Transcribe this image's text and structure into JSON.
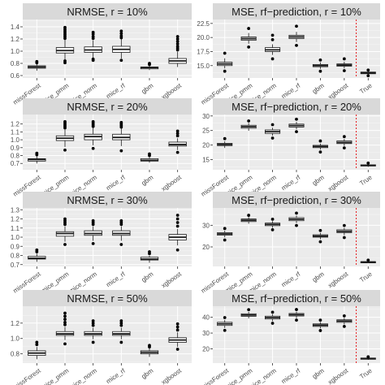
{
  "colors": {
    "panel_bg": "#ebebeb",
    "grid_major": "#ffffff",
    "strip_bg": "#d9d9d9",
    "box_fill": "#ffffff",
    "box_stroke": "#1a1a1a",
    "cutoff_line": "#e41a1c"
  },
  "chart_data": [
    {
      "type": "boxplot",
      "title": "NRMSE, r = 10%",
      "categories": [
        "missForest",
        "mice_pmm",
        "mice_norm",
        "mice_rf",
        "gbm",
        "xgboost"
      ],
      "ylim": [
        0.56,
        1.52
      ],
      "yticks": [
        0.6,
        0.8,
        1.0,
        1.2,
        1.4
      ],
      "ytick_labels": [
        "0.6",
        "0.8",
        "1.0",
        "1.2",
        "1.4"
      ],
      "grid": true,
      "boxes": [
        {
          "q1": 0.72,
          "median": 0.74,
          "q3": 0.76,
          "whisker_low": 0.68,
          "whisker_high": 0.8,
          "outliers": [
            0.81,
            0.83
          ]
        },
        {
          "q1": 0.97,
          "median": 1.01,
          "q3": 1.06,
          "whisker_low": 0.86,
          "whisker_high": 1.19,
          "outliers": [
            0.81,
            0.84,
            1.21,
            1.24,
            1.27,
            1.3,
            1.33,
            1.36,
            1.39
          ]
        },
        {
          "q1": 0.98,
          "median": 1.02,
          "q3": 1.07,
          "whisker_low": 0.89,
          "whisker_high": 1.18,
          "outliers": [
            0.85,
            0.87,
            1.21,
            1.24,
            1.28,
            1.31
          ]
        },
        {
          "q1": 0.98,
          "median": 1.03,
          "q3": 1.08,
          "whisker_low": 0.88,
          "whisker_high": 1.2,
          "outliers": [
            0.85,
            1.22,
            1.25,
            1.29,
            1.33
          ]
        },
        {
          "q1": 0.71,
          "median": 0.73,
          "q3": 0.74,
          "whisker_low": 0.69,
          "whisker_high": 0.77,
          "outliers": [
            0.78,
            0.8
          ]
        },
        {
          "q1": 0.8,
          "median": 0.84,
          "q3": 0.88,
          "whisker_low": 0.74,
          "whisker_high": 0.99,
          "outliers": [
            1.02,
            1.05,
            1.08,
            1.12,
            1.16,
            1.2,
            1.24
          ]
        }
      ]
    },
    {
      "type": "boxplot",
      "title": "MSE, rf−prediction, r = 10%",
      "categories": [
        "missForest",
        "mice_pmm",
        "mice_norm",
        "mice_rf",
        "gbm",
        "xgboost",
        "True"
      ],
      "ylim": [
        12.8,
        23.2
      ],
      "yticks": [
        15.0,
        17.5,
        20.0,
        22.5
      ],
      "ytick_labels": [
        "15.0",
        "17.5",
        "20.0",
        "22.5"
      ],
      "grid": true,
      "cutoff_after_category": "xgboost",
      "boxes": [
        {
          "q1": 15.0,
          "median": 15.3,
          "q3": 15.6,
          "whisker_low": 14.5,
          "whisker_high": 16.3,
          "outliers": [
            14.0,
            17.2
          ]
        },
        {
          "q1": 19.5,
          "median": 19.8,
          "q3": 20.1,
          "whisker_low": 18.9,
          "whisker_high": 20.8,
          "outliers": [
            18.3,
            21.6
          ]
        },
        {
          "q1": 17.5,
          "median": 17.8,
          "q3": 18.2,
          "whisker_low": 16.9,
          "whisker_high": 18.8,
          "outliers": [
            16.2,
            19.6,
            20.4
          ]
        },
        {
          "q1": 19.8,
          "median": 20.1,
          "q3": 20.4,
          "whisker_low": 19.2,
          "whisker_high": 21.0,
          "outliers": [
            18.6,
            22.0
          ]
        },
        {
          "q1": 14.8,
          "median": 15.0,
          "q3": 15.2,
          "whisker_low": 14.4,
          "whisker_high": 15.6,
          "outliers": [
            14.0,
            16.0
          ]
        },
        {
          "q1": 14.9,
          "median": 15.1,
          "q3": 15.3,
          "whisker_low": 14.5,
          "whisker_high": 15.7,
          "outliers": [
            14.1,
            16.2
          ]
        },
        {
          "q1": 13.55,
          "median": 13.7,
          "q3": 13.85,
          "whisker_low": 13.4,
          "whisker_high": 14.0,
          "outliers": [
            13.2,
            14.2
          ]
        }
      ]
    },
    {
      "type": "boxplot",
      "title": "NRMSE, r = 20%",
      "categories": [
        "missForest",
        "mice_pmm",
        "mice_norm",
        "mice_rf",
        "gbm",
        "xgboost"
      ],
      "ylim": [
        0.62,
        1.32
      ],
      "yticks": [
        0.7,
        0.8,
        0.9,
        1.0,
        1.1,
        1.2
      ],
      "ytick_labels": [
        "0.7",
        "0.8",
        "0.9",
        "1.0",
        "1.1",
        "1.2"
      ],
      "grid": true,
      "boxes": [
        {
          "q1": 0.73,
          "median": 0.75,
          "q3": 0.76,
          "whisker_low": 0.7,
          "whisker_high": 0.79,
          "outliers": [
            0.81,
            0.83
          ]
        },
        {
          "q1": 0.99,
          "median": 1.02,
          "q3": 1.05,
          "whisker_low": 0.91,
          "whisker_high": 1.13,
          "outliers": [
            0.87,
            1.15,
            1.17,
            1.19,
            1.21,
            1.23
          ]
        },
        {
          "q1": 1.0,
          "median": 1.04,
          "q3": 1.07,
          "whisker_low": 0.93,
          "whisker_high": 1.15,
          "outliers": [
            0.89,
            1.17,
            1.19,
            1.21,
            1.23
          ]
        },
        {
          "q1": 1.0,
          "median": 1.03,
          "q3": 1.07,
          "whisker_low": 0.92,
          "whisker_high": 1.14,
          "outliers": [
            0.86,
            1.16,
            1.18,
            1.2,
            1.22
          ]
        },
        {
          "q1": 0.73,
          "median": 0.74,
          "q3": 0.76,
          "whisker_low": 0.71,
          "whisker_high": 0.78,
          "outliers": [
            0.8,
            0.82
          ]
        },
        {
          "q1": 0.92,
          "median": 0.94,
          "q3": 0.97,
          "whisker_low": 0.87,
          "whisker_high": 1.02,
          "outliers": [
            0.84,
            1.05,
            1.08,
            1.11
          ]
        }
      ]
    },
    {
      "type": "boxplot",
      "title": "MSE, rf−prediction, r = 20%",
      "categories": [
        "missForest",
        "mice_pmm",
        "mice_norm",
        "mice_rf",
        "gbm",
        "xgboost",
        "True"
      ],
      "ylim": [
        11.5,
        30.5
      ],
      "yticks": [
        15,
        20,
        25,
        30
      ],
      "ytick_labels": [
        "15",
        "20",
        "25",
        "30"
      ],
      "grid": true,
      "cutoff_after_category": "xgboost",
      "boxes": [
        {
          "q1": 19.8,
          "median": 20.2,
          "q3": 20.6,
          "whisker_low": 19.0,
          "whisker_high": 21.3,
          "outliers": [
            22.2
          ]
        },
        {
          "q1": 25.8,
          "median": 26.3,
          "q3": 26.8,
          "whisker_low": 24.9,
          "whisker_high": 27.6,
          "outliers": [
            28.3
          ]
        },
        {
          "q1": 24.0,
          "median": 24.6,
          "q3": 25.2,
          "whisker_low": 23.2,
          "whisker_high": 26.0,
          "outliers": [
            22.4,
            27.0
          ]
        },
        {
          "q1": 26.2,
          "median": 26.7,
          "q3": 27.2,
          "whisker_low": 25.4,
          "whisker_high": 28.0,
          "outliers": [
            24.6,
            28.9
          ]
        },
        {
          "q1": 19.1,
          "median": 19.5,
          "q3": 19.9,
          "whisker_low": 18.4,
          "whisker_high": 20.5,
          "outliers": [
            17.6,
            21.4
          ]
        },
        {
          "q1": 20.5,
          "median": 20.9,
          "q3": 21.4,
          "whisker_low": 19.7,
          "whisker_high": 22.1,
          "outliers": [
            19.0,
            22.9
          ]
        },
        {
          "q1": 12.8,
          "median": 13.0,
          "q3": 13.2,
          "whisker_low": 12.5,
          "whisker_high": 13.5,
          "outliers": [
            13.8
          ]
        }
      ]
    },
    {
      "type": "boxplot",
      "title": "NRMSE, r = 30%",
      "categories": [
        "missForest",
        "mice_pmm",
        "mice_norm",
        "mice_rf",
        "gbm",
        "xgboost"
      ],
      "ylim": [
        0.68,
        1.32
      ],
      "yticks": [
        0.7,
        0.8,
        0.9,
        1.0,
        1.1,
        1.2,
        1.3
      ],
      "ytick_labels": [
        "0.7",
        "0.8",
        "0.9",
        "1.0",
        "1.1",
        "1.2",
        "1.3"
      ],
      "grid": true,
      "boxes": [
        {
          "q1": 0.76,
          "median": 0.77,
          "q3": 0.79,
          "whisker_low": 0.73,
          "whisker_high": 0.82,
          "outliers": [
            0.84,
            0.86
          ]
        },
        {
          "q1": 1.01,
          "median": 1.04,
          "q3": 1.06,
          "whisker_low": 0.95,
          "whisker_high": 1.12,
          "outliers": [
            0.92,
            1.14,
            1.16,
            1.18,
            1.2
          ]
        },
        {
          "q1": 1.02,
          "median": 1.04,
          "q3": 1.07,
          "whisker_low": 0.96,
          "whisker_high": 1.12,
          "outliers": [
            0.93,
            1.14,
            1.16,
            1.18
          ]
        },
        {
          "q1": 1.02,
          "median": 1.04,
          "q3": 1.07,
          "whisker_low": 0.96,
          "whisker_high": 1.12,
          "outliers": [
            0.92,
            1.14,
            1.16,
            1.18
          ]
        },
        {
          "q1": 0.75,
          "median": 0.76,
          "q3": 0.78,
          "whisker_low": 0.72,
          "whisker_high": 0.8,
          "outliers": [
            0.82,
            0.84
          ]
        },
        {
          "q1": 0.97,
          "median": 1.0,
          "q3": 1.03,
          "whisker_low": 0.91,
          "whisker_high": 1.09,
          "outliers": [
            0.86,
            1.12,
            1.16,
            1.2,
            1.24
          ]
        }
      ]
    },
    {
      "type": "boxplot",
      "title": "MSE, rf−prediction, r = 30%",
      "categories": [
        "missForest",
        "mice_pmm",
        "mice_norm",
        "mice_rf",
        "gbm",
        "xgboost",
        "True"
      ],
      "ylim": [
        11,
        38
      ],
      "yticks": [
        20,
        30
      ],
      "ytick_labels": [
        "20",
        "30"
      ],
      "grid": true,
      "cutoff_after_category": "xgboost",
      "boxes": [
        {
          "q1": 25.4,
          "median": 26.0,
          "q3": 26.6,
          "whisker_low": 24.4,
          "whisker_high": 27.5,
          "outliers": [
            23.2,
            28.5
          ]
        },
        {
          "q1": 31.7,
          "median": 32.3,
          "q3": 32.9,
          "whisker_low": 30.7,
          "whisker_high": 33.8,
          "outliers": [
            34.6
          ]
        },
        {
          "q1": 29.8,
          "median": 30.4,
          "q3": 31.0,
          "whisker_low": 28.8,
          "whisker_high": 31.9,
          "outliers": [
            27.9,
            32.8
          ]
        },
        {
          "q1": 32.1,
          "median": 32.8,
          "q3": 33.5,
          "whisker_low": 31.0,
          "whisker_high": 34.5,
          "outliers": [
            29.9,
            35.6
          ]
        },
        {
          "q1": 24.5,
          "median": 25.0,
          "q3": 25.6,
          "whisker_low": 23.5,
          "whisker_high": 26.5,
          "outliers": [
            22.4,
            27.6
          ]
        },
        {
          "q1": 26.6,
          "median": 27.2,
          "q3": 27.9,
          "whisker_low": 25.4,
          "whisker_high": 28.8,
          "outliers": [
            24.3,
            29.9
          ]
        },
        {
          "q1": 12.8,
          "median": 13.0,
          "q3": 13.2,
          "whisker_low": 12.5,
          "whisker_high": 13.5,
          "outliers": [
            13.9
          ]
        }
      ]
    },
    {
      "type": "boxplot",
      "title": "NRMSE, r = 50%",
      "categories": [
        "missForest",
        "mice_pmm",
        "mice_norm",
        "mice_rf",
        "gbm",
        "xgboost"
      ],
      "ylim": [
        0.68,
        1.42
      ],
      "yticks": [
        0.8,
        1.0,
        1.2
      ],
      "ytick_labels": [
        "0.8",
        "1.0",
        "1.2"
      ],
      "grid": true,
      "boxes": [
        {
          "q1": 0.78,
          "median": 0.81,
          "q3": 0.84,
          "whisker_low": 0.73,
          "whisker_high": 0.89,
          "outliers": [
            0.92,
            0.95
          ]
        },
        {
          "q1": 1.04,
          "median": 1.06,
          "q3": 1.09,
          "whisker_low": 0.98,
          "whisker_high": 1.15,
          "outliers": [
            0.93,
            1.18,
            1.21,
            1.25,
            1.29,
            1.33
          ]
        },
        {
          "q1": 1.04,
          "median": 1.06,
          "q3": 1.09,
          "whisker_low": 0.99,
          "whisker_high": 1.14,
          "outliers": [
            0.95,
            1.17,
            1.2,
            1.23
          ]
        },
        {
          "q1": 1.04,
          "median": 1.06,
          "q3": 1.09,
          "whisker_low": 0.99,
          "whisker_high": 1.14,
          "outliers": [
            0.95,
            1.17,
            1.2,
            1.23
          ]
        },
        {
          "q1": 0.8,
          "median": 0.82,
          "q3": 0.84,
          "whisker_low": 0.76,
          "whisker_high": 0.87,
          "outliers": [
            0.89,
            0.91
          ]
        },
        {
          "q1": 0.95,
          "median": 0.98,
          "q3": 1.01,
          "whisker_low": 0.89,
          "whisker_high": 1.08,
          "outliers": [
            0.86,
            1.11,
            1.15,
            1.19
          ]
        }
      ]
    },
    {
      "type": "boxplot",
      "title": "MSE, rf−prediction, r = 50%",
      "categories": [
        "missForest",
        "mice_pmm",
        "mice_norm",
        "mice_rf",
        "gbm",
        "xgboost",
        "True"
      ],
      "ylim": [
        11,
        47
      ],
      "yticks": [
        20,
        30,
        40
      ],
      "ytick_labels": [
        "20",
        "30",
        "40"
      ],
      "grid": true,
      "cutoff_after_category": "xgboost",
      "boxes": [
        {
          "q1": 34.8,
          "median": 35.8,
          "q3": 36.8,
          "whisker_low": 33.2,
          "whisker_high": 38.3,
          "outliers": [
            31.7,
            39.8
          ]
        },
        {
          "q1": 40.6,
          "median": 41.4,
          "q3": 42.2,
          "whisker_low": 39.3,
          "whisker_high": 43.5,
          "outliers": [
            44.8
          ]
        },
        {
          "q1": 38.9,
          "median": 39.8,
          "q3": 40.7,
          "whisker_low": 37.5,
          "whisker_high": 42.0,
          "outliers": [
            36.2,
            43.2
          ]
        },
        {
          "q1": 40.8,
          "median": 41.6,
          "q3": 42.4,
          "whisker_low": 39.4,
          "whisker_high": 43.6,
          "outliers": [
            38.2,
            44.9
          ]
        },
        {
          "q1": 34.2,
          "median": 35.0,
          "q3": 35.8,
          "whisker_low": 32.9,
          "whisker_high": 37.0,
          "outliers": [
            31.6,
            38.2
          ]
        },
        {
          "q1": 36.8,
          "median": 37.6,
          "q3": 38.4,
          "whisker_low": 35.4,
          "whisker_high": 39.6,
          "outliers": [
            34.2,
            40.9
          ]
        },
        {
          "q1": 13.4,
          "median": 13.8,
          "q3": 14.2,
          "whisker_low": 13.0,
          "whisker_high": 14.6,
          "outliers": [
            15.0
          ]
        }
      ]
    }
  ]
}
